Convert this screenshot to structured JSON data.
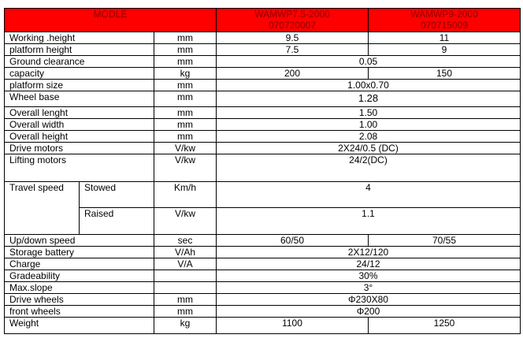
{
  "header": {
    "model_label": "MODLE",
    "model1": {
      "name": "WAMWP7.5-2000",
      "code": "070720007"
    },
    "model2": {
      "name": "WAMWP9-2000",
      "code": "070715009"
    },
    "background": "#ff0000"
  },
  "rows": [
    {
      "label": "Working .height",
      "unit": "mm",
      "v1": "9.5",
      "v2": "11"
    },
    {
      "label": "platform height",
      "unit": "mm",
      "v1": "7.5",
      "v2": "9"
    },
    {
      "label": "Ground clearance",
      "unit": "mm",
      "both": "0.05"
    },
    {
      "label": "capacity",
      "unit": "kg",
      "v1": "200",
      "v2": "150"
    },
    {
      "label": "platform size",
      "unit": "mm",
      "both": "1.00x0.70"
    },
    {
      "label": "Wheel base",
      "unit": "mm",
      "both": "1.28"
    },
    {
      "label": "Overall lenght",
      "unit": "mm",
      "both": "1.50"
    },
    {
      "label": "Overall width",
      "unit": "mm",
      "both": "1.00"
    },
    {
      "label": "Overall height",
      "unit": "mm",
      "both": "2.08"
    },
    {
      "label": "Drive motors",
      "unit": "V/kw",
      "both": "2X24/0.5 (DC)"
    },
    {
      "label": "Lifting motors",
      "unit": "V/kw",
      "both": "24/2(DC)"
    }
  ],
  "travel": {
    "label": "Travel speed",
    "stowed": {
      "label": "Stowed",
      "unit": "Km/h",
      "value": "4"
    },
    "raised": {
      "label": "Raised",
      "unit": "V/kw",
      "value": "1.1"
    }
  },
  "rows2": [
    {
      "label": "Up/down speed",
      "unit": "sec",
      "v1": "60/50",
      "v2": "70/55"
    },
    {
      "label": "Storage battery",
      "unit": "V/Ah",
      "both": "2X12/120"
    },
    {
      "label": "Charge",
      "unit": "V/A",
      "both": "24/12"
    },
    {
      "label": "Gradeability",
      "unit": "",
      "both": "30%"
    },
    {
      "label": "Max.slope",
      "unit": "",
      "both": "3°"
    },
    {
      "label": "Drive wheels",
      "unit": "mm",
      "both": "Φ230X80"
    },
    {
      "label": "front wheels",
      "unit": "mm",
      "both": "Φ200"
    },
    {
      "label": "Weight",
      "unit": "kg",
      "v1": "1100",
      "v2": "1250"
    }
  ]
}
